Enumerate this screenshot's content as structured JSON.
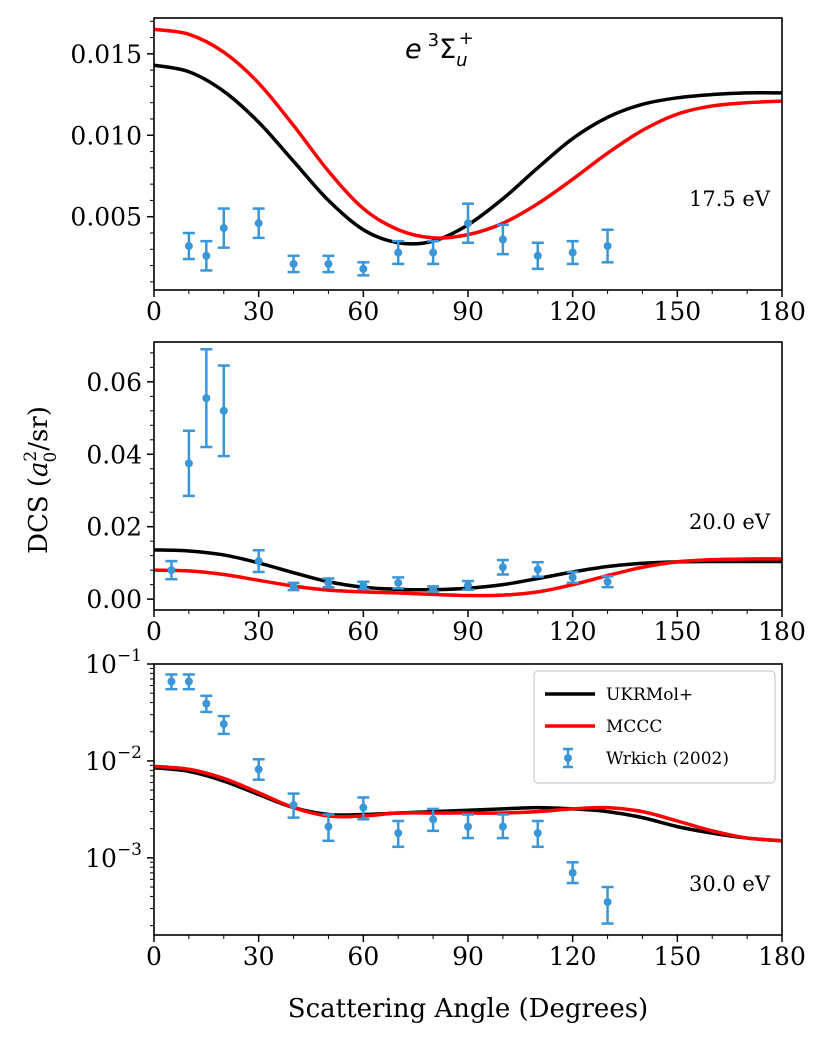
{
  "colors": {
    "ukrmol": "#000000",
    "mccc": "#ff0000",
    "exp": "#3a96d6"
  },
  "title": {
    "base": "e",
    "sup": "3",
    "sigma": "Σ",
    "sub": "u",
    "plus": "+"
  },
  "xlabel": "Scattering Angle (Degrees)",
  "ylabel": {
    "prefix": "DCS (",
    "a": "a",
    "sub": "0",
    "sup": "2",
    "suffix": "/sr)"
  },
  "legend": [
    {
      "label": "UKRMol+",
      "type": "line",
      "color": "#000000"
    },
    {
      "label": "MCCC",
      "type": "line",
      "color": "#ff0000"
    },
    {
      "label": "Wrkich (2002)",
      "type": "errorbar",
      "color": "#3a96d6"
    }
  ],
  "chart_data": [
    {
      "type": "line",
      "energy": "17.5 eV",
      "xlim": [
        0,
        180
      ],
      "ylim": [
        0.0005,
        0.0172
      ],
      "xticks": [
        0,
        30,
        60,
        90,
        120,
        150,
        180
      ],
      "yticks": [
        0.005,
        0.01,
        0.015
      ],
      "ytick_labels": [
        "0.005",
        "0.010",
        "0.015"
      ],
      "series": [
        {
          "name": "UKRMol+",
          "x": [
            0,
            10,
            20,
            30,
            40,
            50,
            60,
            70,
            80,
            90,
            100,
            110,
            120,
            130,
            140,
            150,
            160,
            170,
            180
          ],
          "y": [
            0.0143,
            0.0139,
            0.0127,
            0.0108,
            0.0084,
            0.006,
            0.0042,
            0.0034,
            0.0035,
            0.0045,
            0.0061,
            0.008,
            0.0098,
            0.0111,
            0.0119,
            0.0123,
            0.0125,
            0.0126,
            0.0126
          ]
        },
        {
          "name": "MCCC",
          "x": [
            0,
            10,
            20,
            30,
            40,
            50,
            60,
            70,
            80,
            90,
            100,
            110,
            120,
            130,
            140,
            150,
            160,
            170,
            180
          ],
          "y": [
            0.0165,
            0.0162,
            0.0151,
            0.0132,
            0.0106,
            0.0078,
            0.0055,
            0.0042,
            0.0037,
            0.0039,
            0.0046,
            0.0058,
            0.0073,
            0.0089,
            0.0103,
            0.0113,
            0.0118,
            0.012,
            0.0121
          ]
        }
      ],
      "experiment": {
        "name": "Wrkich (2002)",
        "x": [
          10,
          15,
          20,
          30,
          40,
          50,
          60,
          70,
          80,
          90,
          100,
          110,
          120,
          130
        ],
        "y": [
          0.0032,
          0.0026,
          0.0043,
          0.0046,
          0.0021,
          0.0021,
          0.0018,
          0.0028,
          0.0028,
          0.0046,
          0.0036,
          0.0026,
          0.0028,
          0.0032
        ],
        "err": [
          0.0008,
          0.0009,
          0.0012,
          0.0009,
          0.0005,
          0.0005,
          0.0004,
          0.0007,
          0.0007,
          0.0012,
          0.0009,
          0.0008,
          0.0007,
          0.001
        ]
      },
      "scale": "linear"
    },
    {
      "type": "line",
      "energy": "20.0 eV",
      "xlim": [
        0,
        180
      ],
      "ylim": [
        -0.003,
        0.071
      ],
      "xticks": [
        0,
        30,
        60,
        90,
        120,
        150,
        180
      ],
      "yticks": [
        0,
        0.02,
        0.04,
        0.06
      ],
      "ytick_labels": [
        "0.00",
        "0.02",
        "0.04",
        "0.06"
      ],
      "series": [
        {
          "name": "UKRMol+",
          "x": [
            0,
            10,
            20,
            30,
            40,
            50,
            60,
            70,
            80,
            90,
            100,
            110,
            120,
            130,
            140,
            150,
            160,
            170,
            180
          ],
          "y": [
            0.0136,
            0.0133,
            0.0122,
            0.01,
            0.0073,
            0.0048,
            0.0033,
            0.0027,
            0.0026,
            0.003,
            0.004,
            0.0057,
            0.0075,
            0.009,
            0.0099,
            0.0103,
            0.0104,
            0.0104,
            0.0104
          ]
        },
        {
          "name": "MCCC",
          "x": [
            0,
            10,
            20,
            30,
            40,
            50,
            60,
            70,
            80,
            90,
            100,
            110,
            120,
            130,
            140,
            150,
            160,
            170,
            180
          ],
          "y": [
            0.008,
            0.0078,
            0.0068,
            0.0052,
            0.0036,
            0.0025,
            0.002,
            0.0017,
            0.0013,
            0.001,
            0.0011,
            0.002,
            0.004,
            0.0065,
            0.0088,
            0.0103,
            0.0109,
            0.0111,
            0.0111
          ]
        }
      ],
      "experiment": {
        "name": "Wrkich (2002)",
        "x": [
          5,
          10,
          15,
          20,
          30,
          40,
          50,
          60,
          70,
          80,
          90,
          100,
          110,
          120,
          130
        ],
        "y": [
          0.008,
          0.0375,
          0.0555,
          0.052,
          0.0105,
          0.0035,
          0.0045,
          0.0038,
          0.0045,
          0.0028,
          0.0038,
          0.0088,
          0.0082,
          0.006,
          0.0048
        ],
        "err": [
          0.0025,
          0.009,
          0.0135,
          0.0125,
          0.003,
          0.001,
          0.0012,
          0.001,
          0.0015,
          0.0007,
          0.0012,
          0.002,
          0.002,
          0.0015,
          0.0015
        ]
      },
      "scale": "linear"
    },
    {
      "type": "line",
      "energy": "30.0 eV",
      "xlim": [
        0,
        180
      ],
      "ylim": [
        0.00016,
        0.1
      ],
      "xticks": [
        0,
        30,
        60,
        90,
        120,
        150,
        180
      ],
      "yticks": [
        0.001,
        0.01,
        0.1
      ],
      "ytick_labels": [
        {
          "base": "10",
          "exp": "−3"
        },
        {
          "base": "10",
          "exp": "−2"
        },
        {
          "base": "10",
          "exp": "−1"
        }
      ],
      "series": [
        {
          "name": "UKRMol+",
          "x": [
            0,
            10,
            20,
            30,
            40,
            50,
            60,
            70,
            80,
            90,
            100,
            110,
            120,
            130,
            140,
            150,
            160,
            170,
            180
          ],
          "y": [
            0.0085,
            0.0078,
            0.0062,
            0.0045,
            0.0033,
            0.0028,
            0.0028,
            0.0029,
            0.003,
            0.0031,
            0.0032,
            0.0033,
            0.0032,
            0.003,
            0.0026,
            0.0021,
            0.0018,
            0.0016,
            0.0015
          ]
        },
        {
          "name": "MCCC",
          "x": [
            0,
            10,
            20,
            30,
            40,
            50,
            60,
            70,
            80,
            90,
            100,
            110,
            120,
            130,
            140,
            150,
            160,
            170,
            180
          ],
          "y": [
            0.0088,
            0.0082,
            0.0066,
            0.0047,
            0.0033,
            0.0027,
            0.0027,
            0.0029,
            0.0029,
            0.0029,
            0.0029,
            0.003,
            0.0032,
            0.0033,
            0.003,
            0.0024,
            0.0019,
            0.0016,
            0.0015
          ]
        }
      ],
      "experiment": {
        "name": "Wrkich (2002)",
        "x": [
          5,
          10,
          15,
          20,
          30,
          40,
          50,
          60,
          70,
          80,
          90,
          100,
          110,
          120,
          130
        ],
        "y": [
          0.066,
          0.066,
          0.039,
          0.024,
          0.0082,
          0.0035,
          0.0021,
          0.0033,
          0.0018,
          0.0025,
          0.0021,
          0.0021,
          0.0018,
          0.0007,
          0.00035
        ],
        "lo": [
          0.055,
          0.055,
          0.032,
          0.019,
          0.0064,
          0.0026,
          0.0015,
          0.0025,
          0.0013,
          0.0019,
          0.0016,
          0.0016,
          0.0013,
          0.00055,
          0.00021
        ],
        "hi": [
          0.078,
          0.078,
          0.047,
          0.029,
          0.0104,
          0.0046,
          0.0028,
          0.0042,
          0.0024,
          0.0032,
          0.0028,
          0.0028,
          0.0024,
          0.0009,
          0.0005
        ]
      },
      "scale": "log"
    }
  ]
}
